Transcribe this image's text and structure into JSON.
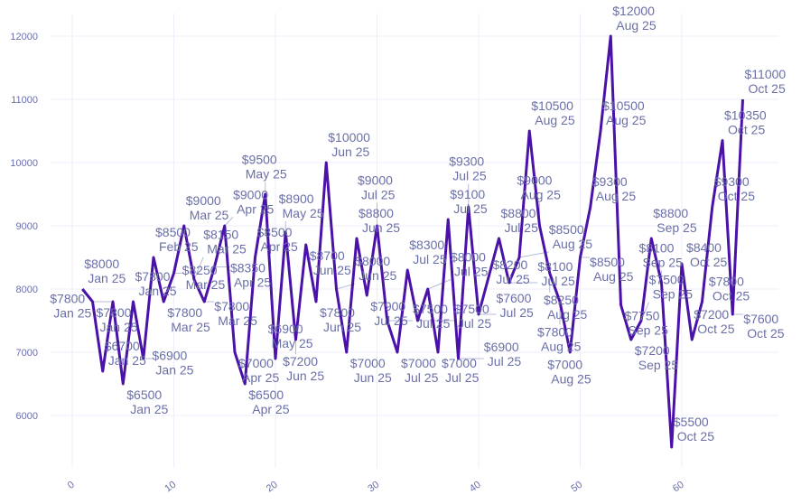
{
  "chart_data": {
    "type": "line",
    "title": "",
    "xlabel": "",
    "ylabel": "",
    "xlim": [
      -1,
      69.3
    ],
    "ylim": [
      5200,
      12360
    ],
    "grid": true,
    "x_ticks": [
      0,
      10,
      20,
      30,
      40,
      50,
      60
    ],
    "y_ticks": [
      6000,
      7000,
      8000,
      9000,
      10000,
      11000,
      12000
    ],
    "line_color": "#4a12a8",
    "label_color": "#6a6fa8",
    "series": [
      {
        "name": "price",
        "x": [
          1,
          2,
          3,
          4,
          5,
          6,
          7,
          8,
          9,
          10,
          11,
          12,
          13,
          14,
          15,
          16,
          17,
          18,
          19,
          20,
          21,
          22,
          23,
          24,
          25,
          26,
          27,
          28,
          29,
          30,
          31,
          32,
          33,
          34,
          35,
          36,
          37,
          38,
          39,
          40,
          41,
          42,
          43,
          44,
          45,
          46,
          47,
          48,
          49,
          50,
          51,
          52,
          53,
          54,
          55,
          56,
          57,
          58,
          59,
          60,
          61,
          62,
          63,
          64,
          65,
          66
        ],
        "values": [
          8000,
          7800,
          6700,
          7800,
          6500,
          7800,
          6900,
          8500,
          7800,
          8250,
          9000,
          8150,
          7800,
          8350,
          9000,
          7000,
          6500,
          8500,
          9500,
          6900,
          8900,
          7200,
          8700,
          7800,
          10000,
          8000,
          7000,
          8800,
          7900,
          9000,
          7500,
          7000,
          8300,
          7500,
          8000,
          7000,
          9100,
          6900,
          9300,
          7600,
          8200,
          8800,
          8100,
          8500,
          10500,
          9000,
          8250,
          7800,
          7000,
          8500,
          9300,
          10500,
          12000,
          7750,
          7200,
          7500,
          8800,
          8100,
          5500,
          8400,
          7200,
          7800,
          9300,
          10350,
          7600,
          11000
        ],
        "labels": [
          "$8000",
          "$7800",
          "$6700",
          "$7800",
          "$6500",
          "$7800",
          "$6900",
          "$8500",
          "$7800",
          "$8250",
          "$9000",
          "$8150",
          "$7800",
          "$8350",
          "$9000",
          "$7000",
          "$6500",
          "$8500",
          "$9500",
          "$6900",
          "$8900",
          "$7200",
          "$8700",
          "$7800",
          "$10000",
          "$8000",
          "$7000",
          "$8800",
          "$7900",
          "$9000",
          "$7500",
          "$7000",
          "$8300",
          "$7500",
          "$8000",
          "$7000",
          "$9100",
          "$6900",
          "$9300",
          "$7600",
          "$8200",
          "$8800",
          "$8100",
          "$8500",
          "$10500",
          "$9000",
          "$8250",
          "$7800",
          "$7000",
          "$8500",
          "$9300",
          "$10500",
          "$12000",
          "$7750",
          "$7200",
          "$7500",
          "$8800",
          "$8100",
          "$5500",
          "$8400",
          "$7200",
          "$7800",
          "$9300",
          "$10350",
          "$7600",
          "$11000"
        ],
        "months": [
          "Jan 25",
          "Jan 25",
          "Jan 25",
          "Jan 25",
          "Jan 25",
          "Jan 25",
          "Jan 25",
          "Feb 25",
          "Mar 25",
          "Mar 25",
          "Mar 25",
          "Mar 25",
          "Mar 25",
          "Apr 25",
          "Apr 25",
          "Apr 25",
          "Apr 25",
          "Apr 25",
          "May 25",
          "May 25",
          "May 25",
          "Jun 25",
          "Jun 25",
          "Jun 25",
          "Jun 25",
          "Jun 25",
          "Jun 25",
          "Jun 25",
          "Jul 25",
          "Jul 25",
          "Jul 25",
          "Jul 25",
          "Jul 25",
          "Jul 25",
          "Jul 25",
          "Jul 25",
          "Jul 25",
          "Jul 25",
          "Jul 25",
          "Jul 25",
          "Jul 25",
          "Jul 25",
          "Jul 25",
          "Aug 25",
          "Aug 25",
          "Aug 25",
          "Aug 25",
          "Aug 25",
          "Aug 25",
          "Aug 25",
          "Aug 25",
          "Aug 25",
          "Aug 25",
          "Sep 25",
          "Sep 25",
          "Sep 25",
          "Sep 25",
          "Sep 25",
          "Oct 25",
          "Oct 25",
          "Oct 25",
          "Oct 25",
          "Oct 25",
          "Oct 25",
          "Oct 25",
          "Oct 25"
        ]
      }
    ]
  }
}
